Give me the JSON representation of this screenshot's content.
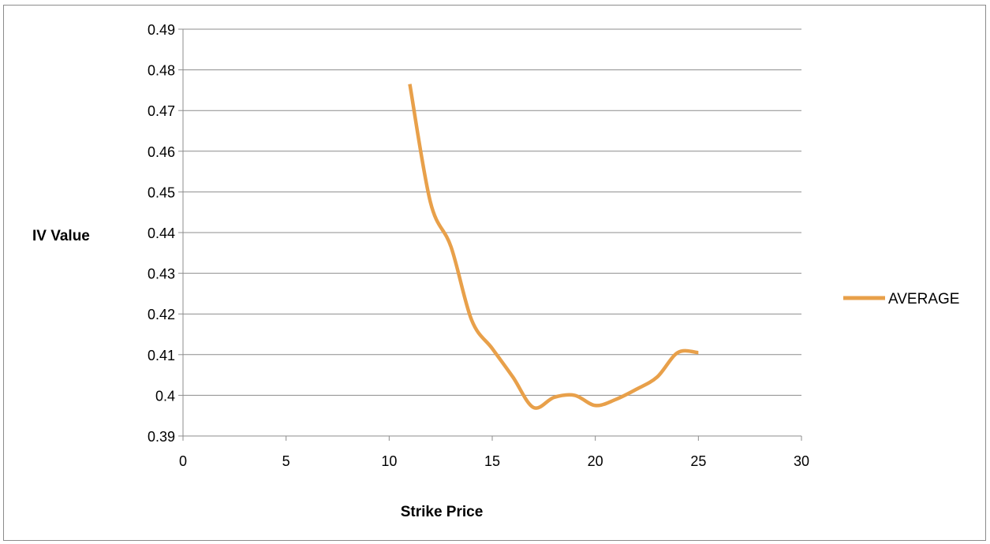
{
  "chart_data": {
    "type": "line",
    "title": "",
    "xlabel": "Strike Price",
    "ylabel": "IV Value",
    "xlim": [
      0,
      30
    ],
    "ylim": [
      0.39,
      0.49
    ],
    "x_ticks": [
      "0",
      "5",
      "10",
      "15",
      "20",
      "25",
      "30"
    ],
    "y_ticks": [
      "0.39",
      "0.4",
      "0.41",
      "0.42",
      "0.43",
      "0.44",
      "0.45",
      "0.46",
      "0.47",
      "0.48",
      "0.49"
    ],
    "grid": "horizontal",
    "legend_position": "right",
    "series": [
      {
        "name": "AVERAGE",
        "color": "#E8A04A",
        "x": [
          11,
          12,
          13,
          14,
          15,
          16,
          17,
          18,
          19,
          20,
          21,
          22,
          23,
          24,
          25
        ],
        "y": [
          0.4765,
          0.4475,
          0.4365,
          0.4185,
          0.4115,
          0.4045,
          0.397,
          0.3995,
          0.4,
          0.3975,
          0.399,
          0.4015,
          0.4045,
          0.4105,
          0.4105
        ]
      }
    ]
  }
}
